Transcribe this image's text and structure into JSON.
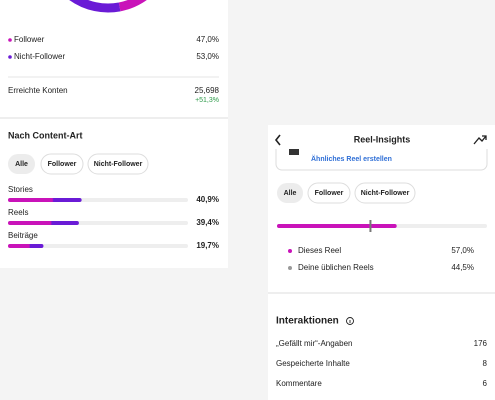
{
  "audience": {
    "segments": [
      {
        "name": "Follower",
        "value": 47.0,
        "label": "47,0%"
      },
      {
        "name": "Nicht-Follower",
        "value": 53.0,
        "label": "53,0%"
      }
    ],
    "reached": {
      "label": "Erreichte Konten",
      "value": "25,698",
      "change": "+51,3%"
    }
  },
  "content_type": {
    "title": "Nach Content-Art",
    "filters": [
      "Alle",
      "Follower",
      "Nicht-Follower"
    ],
    "rows": [
      {
        "name": "Stories",
        "value": 40.9,
        "label": "40,9%"
      },
      {
        "name": "Reels",
        "value": 39.4,
        "label": "39,4%"
      },
      {
        "name": "Beiträge",
        "value": 19.7,
        "label": "19,7%"
      }
    ]
  },
  "reel_insights": {
    "title": "Reel-Insights",
    "card_action": "Ähnliches Reel erstellen",
    "filters": [
      "Alle",
      "Follower",
      "Nicht-Follower"
    ],
    "comparison": [
      {
        "name": "Dieses Reel",
        "value": 57.0,
        "label": "57,0%"
      },
      {
        "name": "Deine üblichen Reels",
        "value": 44.5,
        "label": "44,5%"
      }
    ]
  },
  "interactions": {
    "title": "Interaktionen",
    "rows": [
      {
        "name": "„Gefällt mir“-Angaben",
        "value": 176
      },
      {
        "name": "Gespeicherte Inhalte",
        "value": 8
      },
      {
        "name": "Kommentare",
        "value": 6
      }
    ]
  }
}
